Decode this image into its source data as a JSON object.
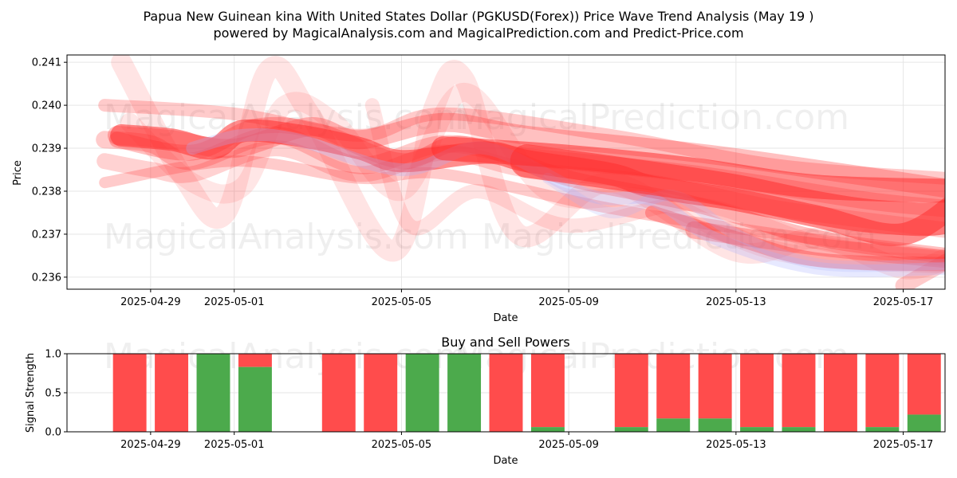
{
  "chart_data": [
    {
      "type": "line",
      "title_line1": "Papua New Guinean kina With United States Dollar (PGKUSD(Forex)) Price Wave Trend Analysis (May 19 )",
      "title_line2": "powered by MagicalAnalysis.com and MagicalPrediction.com and Predict-Price.com",
      "xlabel": "Date",
      "ylabel": "Price",
      "x_ticks": [
        "2025-04-29",
        "2025-05-01",
        "2025-05-05",
        "2025-05-09",
        "2025-05-13",
        "2025-05-17"
      ],
      "x_tick_days": [
        1,
        3,
        7,
        11,
        15,
        19
      ],
      "x_range_days": [
        -1.0,
        20.0
      ],
      "y_ticks": [
        0.236,
        0.237,
        0.238,
        0.239,
        0.24,
        0.241
      ],
      "y_tick_labels": [
        "0.236",
        "0.237",
        "0.238",
        "0.239",
        "0.240",
        "0.241"
      ],
      "ylim": [
        0.23572,
        0.24117
      ],
      "watermarks": [
        "MagicalAnalysis.com",
        "MagicalPrediction.com",
        "MagicalAnalysis.com",
        "MagicalPrediction.com"
      ],
      "main_color": "#ff3030",
      "alt_color": "#aab0ff",
      "bands": [
        {
          "name": "band-1",
          "width": 14,
          "opacity": 0.25,
          "pts": [
            [
              -0.1,
              0.2382
            ],
            [
              3,
              0.2387
            ],
            [
              6,
              0.2383
            ],
            [
              8,
              0.2384
            ],
            [
              12,
              0.2376
            ],
            [
              16,
              0.237
            ],
            [
              20,
              0.2365
            ]
          ]
        },
        {
          "name": "band-2",
          "width": 16,
          "opacity": 0.25,
          "pts": [
            [
              -0.1,
              0.24
            ],
            [
              3,
              0.2398
            ],
            [
              6,
              0.2393
            ],
            [
              8,
              0.2398
            ],
            [
              12,
              0.2393
            ],
            [
              16,
              0.2386
            ],
            [
              20,
              0.2383
            ]
          ]
        },
        {
          "name": "band-3",
          "width": 20,
          "opacity": 0.22,
          "pts": [
            [
              -0.1,
              0.2387
            ],
            [
              1,
              0.2385
            ],
            [
              2,
              0.2384
            ],
            [
              4,
              0.239
            ],
            [
              6,
              0.2384
            ],
            [
              8,
              0.2389
            ],
            [
              10,
              0.2385
            ],
            [
              13,
              0.2382
            ],
            [
              16,
              0.2376
            ],
            [
              20,
              0.2371
            ]
          ]
        },
        {
          "name": "band-4",
          "width": 22,
          "opacity": 0.25,
          "pts": [
            [
              -0.1,
              0.2392
            ],
            [
              1,
              0.2391
            ],
            [
              2,
              0.2387
            ],
            [
              4,
              0.2393
            ],
            [
              6,
              0.2386
            ],
            [
              8,
              0.2391
            ],
            [
              10,
              0.2388
            ],
            [
              14,
              0.2384
            ],
            [
              18,
              0.2378
            ],
            [
              20,
              0.2376
            ]
          ]
        },
        {
          "name": "band-5",
          "width": 24,
          "opacity": 0.3,
          "pts": [
            [
              0.2,
              0.2393
            ],
            [
              1.5,
              0.2392
            ],
            [
              3,
              0.239
            ],
            [
              4.8,
              0.2395
            ],
            [
              6,
              0.2392
            ],
            [
              8,
              0.2396
            ],
            [
              10,
              0.2393
            ],
            [
              14,
              0.2389
            ],
            [
              17,
              0.2385
            ],
            [
              20.5,
              0.238
            ]
          ]
        },
        {
          "name": "band-6",
          "width": 20,
          "opacity": 0.3,
          "pts": [
            [
              0.2,
              0.2392
            ],
            [
              2,
              0.2389
            ],
            [
              3.5,
              0.2395
            ],
            [
              5,
              0.2394
            ],
            [
              7,
              0.2387
            ],
            [
              8.5,
              0.2391
            ],
            [
              11,
              0.2383
            ],
            [
              14,
              0.2377
            ],
            [
              17,
              0.2369
            ],
            [
              20,
              0.2365
            ]
          ]
        },
        {
          "name": "band-7",
          "width": 28,
          "opacity": 0.55,
          "pts": [
            [
              0.3,
              0.2393
            ],
            [
              1.5,
              0.2392
            ],
            [
              2.5,
              0.239
            ],
            [
              3.2,
              0.2394
            ],
            [
              4.5,
              0.2393
            ],
            [
              6,
              0.239
            ],
            [
              7,
              0.2387
            ],
            [
              9,
              0.2389
            ],
            [
              10,
              0.2387
            ],
            [
              12,
              0.2384
            ],
            [
              13,
              0.2381
            ],
            [
              15,
              0.2378
            ],
            [
              17,
              0.2374
            ],
            [
              19,
              0.237
            ],
            [
              20.6,
              0.238
            ]
          ]
        },
        {
          "name": "wave-1",
          "width": 26,
          "opacity": 0.13,
          "pts": [
            [
              0.3,
              0.241
            ],
            [
              1.8,
              0.2383
            ],
            [
              2.8,
              0.2375
            ],
            [
              3.8,
              0.2408
            ],
            [
              4.8,
              0.2398
            ],
            [
              6.8,
              0.2366
            ],
            [
              7.8,
              0.24
            ],
            [
              8.5,
              0.2406
            ],
            [
              9.8,
              0.237
            ],
            [
              12,
              0.2382
            ],
            [
              15,
              0.2366
            ],
            [
              17,
              0.2369
            ],
            [
              19,
              0.2362
            ],
            [
              20.2,
              0.2365
            ]
          ]
        },
        {
          "name": "wave-2",
          "width": 24,
          "opacity": 0.12,
          "pts": [
            [
              0.5,
              0.2396
            ],
            [
              2,
              0.2382
            ],
            [
              3.2,
              0.2381
            ],
            [
              4.2,
              0.24
            ],
            [
              5.4,
              0.2396
            ],
            [
              7,
              0.238
            ],
            [
              8.5,
              0.2403
            ],
            [
              10.5,
              0.238
            ],
            [
              13,
              0.2378
            ],
            [
              16,
              0.2366
            ],
            [
              20,
              0.2363
            ]
          ]
        },
        {
          "name": "wave-3",
          "width": 18,
          "opacity": 0.14,
          "pts": [
            [
              6.3,
              0.24
            ],
            [
              7.2,
              0.2372
            ],
            [
              8.8,
              0.238
            ],
            [
              11,
              0.2372
            ],
            [
              14,
              0.2377
            ],
            [
              17,
              0.2368
            ],
            [
              20.2,
              0.2364
            ]
          ]
        },
        {
          "name": "tail-1",
          "width": 18,
          "opacity": 0.35,
          "pts": [
            [
              13,
              0.2375
            ],
            [
              15,
              0.2369
            ],
            [
              17,
              0.2364
            ],
            [
              20.2,
              0.2363
            ]
          ]
        },
        {
          "name": "tail-2",
          "width": 22,
          "opacity": 0.3,
          "pts": [
            [
              14,
              0.2371
            ],
            [
              17,
              0.2367
            ],
            [
              20.2,
              0.2364
            ]
          ]
        },
        {
          "name": "tail-3",
          "width": 20,
          "opacity": 0.25,
          "pts": [
            [
              19,
              0.2358
            ],
            [
              20.1,
              0.2364
            ]
          ]
        },
        {
          "name": "alt-1",
          "width": 16,
          "opacity": 0.28,
          "alt": true,
          "pts": [
            [
              2,
              0.239
            ],
            [
              3.2,
              0.2393
            ],
            [
              4.5,
              0.2392
            ],
            [
              7,
              0.2385
            ],
            [
              9,
              0.239
            ],
            [
              11.5,
              0.2379
            ],
            [
              13,
              0.2378
            ],
            [
              14.5,
              0.2369
            ],
            [
              17,
              0.2362
            ],
            [
              20,
              0.2362
            ]
          ]
        },
        {
          "name": "alt-2",
          "width": 14,
          "opacity": 0.22,
          "alt": true,
          "pts": [
            [
              10.5,
              0.2383
            ],
            [
              12,
              0.2375
            ],
            [
              13.5,
              0.2379
            ],
            [
              15,
              0.237
            ],
            [
              17,
              0.2363
            ],
            [
              20,
              0.2363
            ]
          ]
        },
        {
          "name": "core-trend",
          "width": 42,
          "opacity": 0.55,
          "pts": [
            [
              10,
              0.2387
            ],
            [
              13,
              0.2383
            ],
            [
              15,
              0.238
            ],
            [
              17,
              0.2376
            ],
            [
              18.5,
              0.2374
            ],
            [
              20,
              0.2374
            ],
            [
              20.8,
              0.238
            ]
          ]
        },
        {
          "name": "core-trend-2",
          "width": 30,
          "opacity": 0.55,
          "pts": [
            [
              8,
              0.239
            ],
            [
              11,
              0.2388
            ],
            [
              14,
              0.2385
            ],
            [
              17,
              0.2381
            ],
            [
              20.8,
              0.238
            ]
          ]
        }
      ]
    },
    {
      "type": "bar",
      "title": "Buy and Sell Powers",
      "xlabel": "Date",
      "ylabel": "Signal Strength",
      "y_ticks": [
        0.0,
        0.5,
        1.0
      ],
      "y_tick_labels": [
        "0.0",
        "0.5",
        "1.0"
      ],
      "ylim": [
        0,
        1
      ],
      "x_ticks": [
        "2025-04-29",
        "2025-05-01",
        "2025-05-05",
        "2025-05-09",
        "2025-05-13",
        "2025-05-17"
      ],
      "x_tick_days": [
        1,
        3,
        7,
        11,
        15,
        19
      ],
      "x_range_days": [
        -1.0,
        20.0
      ],
      "buy_color": "#4caa4c",
      "sell_color": "#ff4c4c",
      "days": [
        0.5,
        1.5,
        2.5,
        3.5,
        5.5,
        6.5,
        7.5,
        8.5,
        9.5,
        10.5,
        12.5,
        13.5,
        14.5,
        15.5,
        16.5,
        17.5,
        18.5,
        19.5
      ],
      "buy": [
        0.0,
        0.0,
        1.0,
        0.83,
        0.0,
        0.0,
        1.0,
        1.0,
        0.0,
        0.06,
        0.06,
        0.17,
        0.17,
        0.06,
        0.06,
        0.0,
        0.06,
        0.22
      ],
      "watermarks": [
        "MagicalAnalysis.com",
        "MagicalPrediction.com"
      ]
    }
  ]
}
